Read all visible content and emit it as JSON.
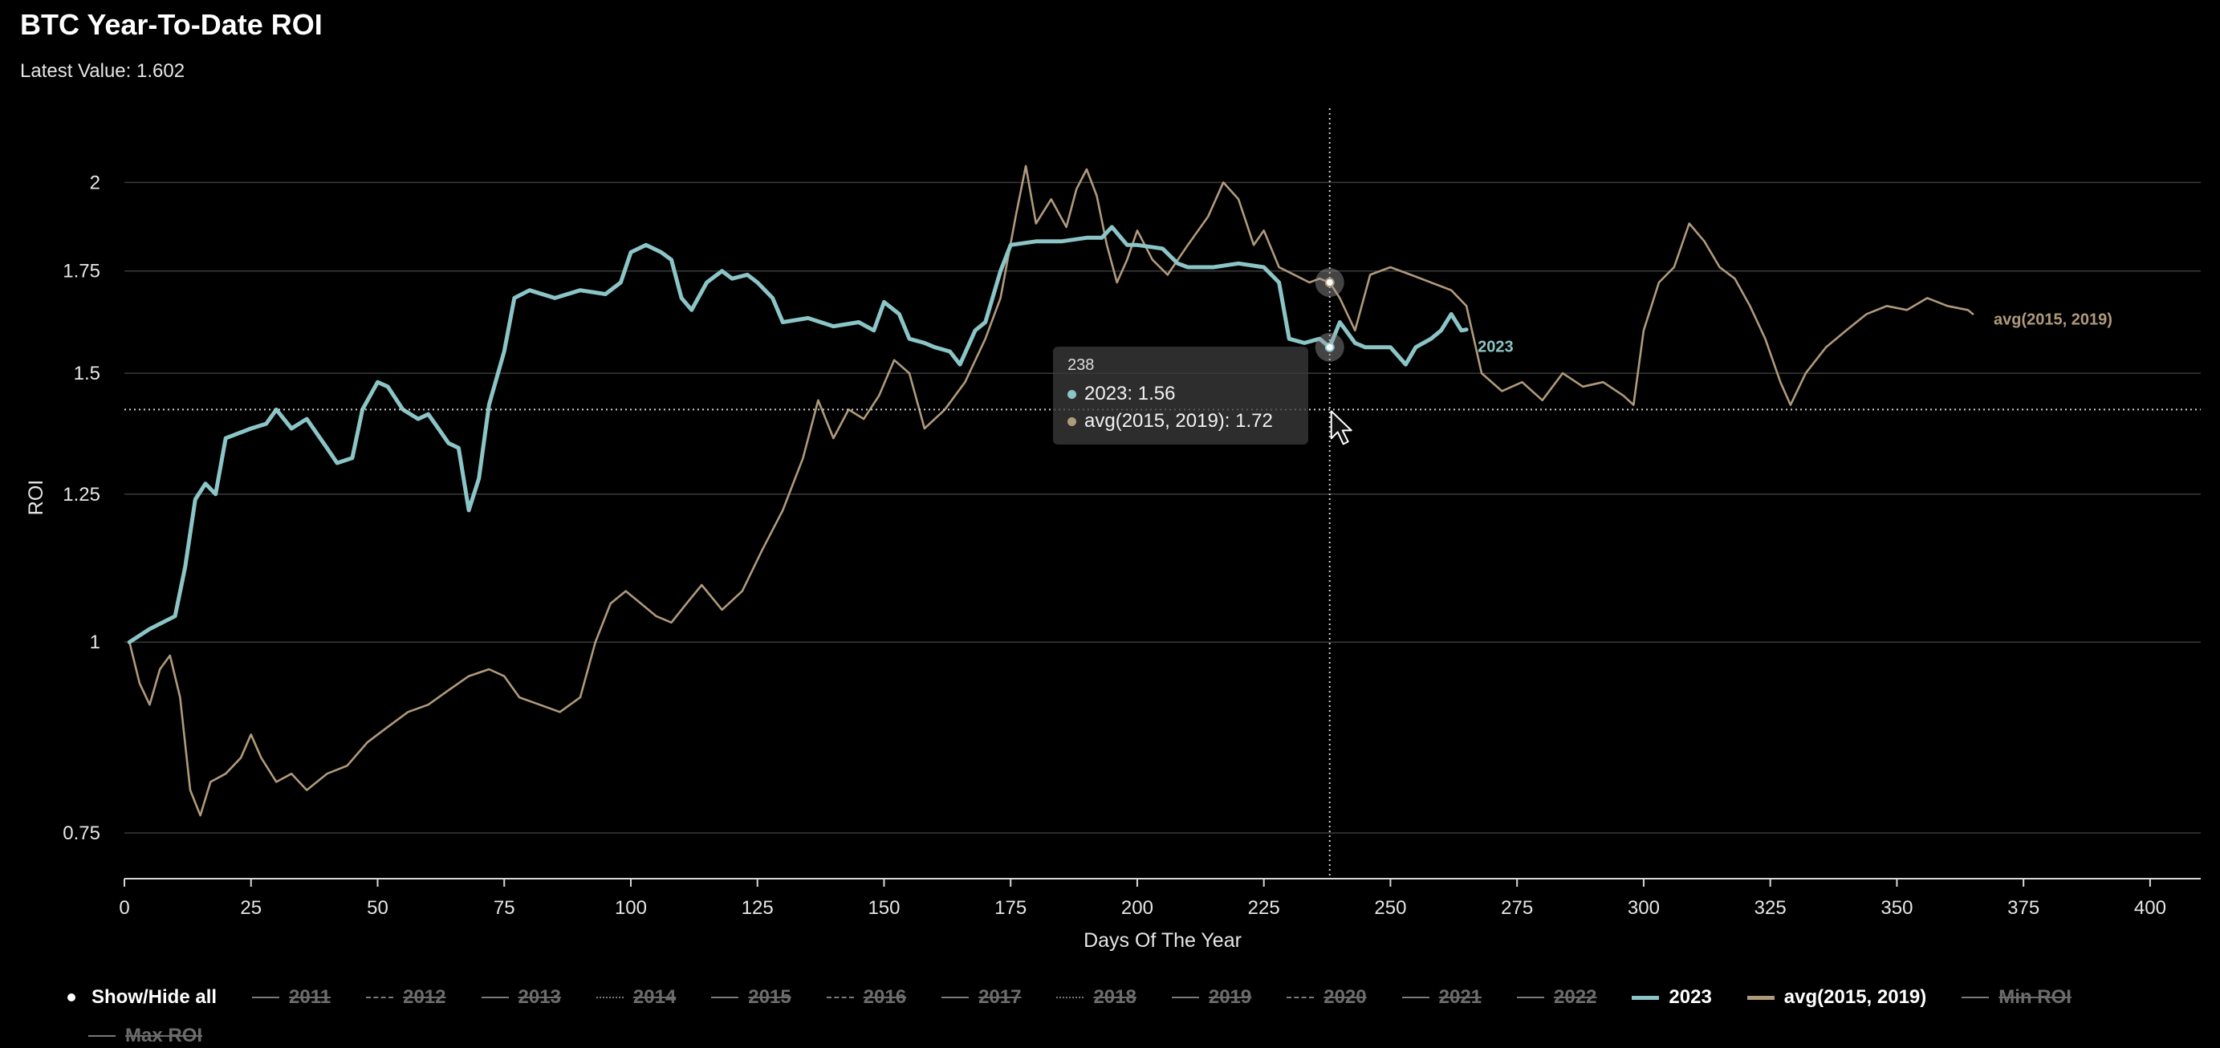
{
  "title": "BTC Year-To-Date ROI",
  "subtitle": "Latest Value: 1.602",
  "colors": {
    "background": "#000000",
    "series_2023": "#8cc5c7",
    "series_avg": "#b09a7c",
    "grid": "#3a3a3a",
    "crosshair": "#cfcfcf"
  },
  "legend": {
    "toggle_label": "Show/Hide all",
    "items": [
      {
        "label": "2011",
        "state": "hidden",
        "dash": "solid"
      },
      {
        "label": "2012",
        "state": "hidden",
        "dash": "dashed"
      },
      {
        "label": "2013",
        "state": "hidden",
        "dash": "solid"
      },
      {
        "label": "2014",
        "state": "hidden",
        "dash": "dotted"
      },
      {
        "label": "2015",
        "state": "hidden",
        "dash": "solid"
      },
      {
        "label": "2016",
        "state": "hidden",
        "dash": "dashed"
      },
      {
        "label": "2017",
        "state": "hidden",
        "dash": "solid"
      },
      {
        "label": "2018",
        "state": "hidden",
        "dash": "dotted"
      },
      {
        "label": "2019",
        "state": "hidden",
        "dash": "solid"
      },
      {
        "label": "2020",
        "state": "hidden",
        "dash": "dashed"
      },
      {
        "label": "2021",
        "state": "hidden",
        "dash": "solid"
      },
      {
        "label": "2022",
        "state": "hidden",
        "dash": "solid"
      },
      {
        "label": "2023",
        "state": "visible",
        "dash": "solid",
        "color": "#8cc5c7"
      },
      {
        "label": "avg(2015, 2019)",
        "state": "visible",
        "dash": "solid",
        "color": "#b09a7c"
      },
      {
        "label": "Min ROI",
        "state": "hidden",
        "dash": "solid"
      },
      {
        "label": "Max ROI",
        "state": "hidden",
        "dash": "solid"
      }
    ]
  },
  "tooltip": {
    "day": "238",
    "rows": [
      {
        "text": "2023: 1.56",
        "color": "#8cc5c7"
      },
      {
        "text": "avg(2015, 2019): 1.72",
        "color": "#b09a7c"
      }
    ]
  },
  "chart_data": {
    "type": "line",
    "title": "BTC Year-To-Date ROI",
    "subtitle": "Latest Value: 1.602",
    "xlabel": "Days Of The Year",
    "ylabel": "ROI",
    "xlim": [
      0,
      410
    ],
    "ylim": [
      0.7,
      2.25
    ],
    "y_scale": "log",
    "x_ticks": [
      0,
      25,
      50,
      75,
      100,
      125,
      150,
      175,
      200,
      225,
      250,
      275,
      300,
      325,
      350,
      375,
      400
    ],
    "y_ticks": [
      0.75,
      1,
      1.25,
      1.5,
      1.75,
      2
    ],
    "y_tick_labels": [
      "0.75",
      "1",
      "1.25",
      "1.5",
      "1.75",
      "2"
    ],
    "grid": true,
    "crosshair": {
      "x": 238,
      "y": 1.42
    },
    "series": [
      {
        "name": "2023",
        "end_label": "2023",
        "color": "#8cc5c7",
        "points": [
          [
            1,
            1.0
          ],
          [
            5,
            1.02
          ],
          [
            10,
            1.04
          ],
          [
            12,
            1.12
          ],
          [
            14,
            1.24
          ],
          [
            16,
            1.27
          ],
          [
            18,
            1.25
          ],
          [
            20,
            1.36
          ],
          [
            25,
            1.38
          ],
          [
            28,
            1.39
          ],
          [
            30,
            1.42
          ],
          [
            33,
            1.38
          ],
          [
            36,
            1.4
          ],
          [
            40,
            1.34
          ],
          [
            42,
            1.31
          ],
          [
            45,
            1.32
          ],
          [
            47,
            1.42
          ],
          [
            50,
            1.48
          ],
          [
            52,
            1.47
          ],
          [
            55,
            1.42
          ],
          [
            58,
            1.4
          ],
          [
            60,
            1.41
          ],
          [
            62,
            1.38
          ],
          [
            64,
            1.35
          ],
          [
            66,
            1.34
          ],
          [
            68,
            1.22
          ],
          [
            70,
            1.28
          ],
          [
            72,
            1.43
          ],
          [
            75,
            1.55
          ],
          [
            77,
            1.68
          ],
          [
            80,
            1.7
          ],
          [
            85,
            1.68
          ],
          [
            90,
            1.7
          ],
          [
            95,
            1.69
          ],
          [
            98,
            1.72
          ],
          [
            100,
            1.8
          ],
          [
            103,
            1.82
          ],
          [
            106,
            1.8
          ],
          [
            108,
            1.78
          ],
          [
            110,
            1.68
          ],
          [
            112,
            1.65
          ],
          [
            115,
            1.72
          ],
          [
            118,
            1.75
          ],
          [
            120,
            1.73
          ],
          [
            123,
            1.74
          ],
          [
            125,
            1.72
          ],
          [
            128,
            1.68
          ],
          [
            130,
            1.62
          ],
          [
            135,
            1.63
          ],
          [
            140,
            1.61
          ],
          [
            145,
            1.62
          ],
          [
            148,
            1.6
          ],
          [
            150,
            1.67
          ],
          [
            153,
            1.64
          ],
          [
            155,
            1.58
          ],
          [
            158,
            1.57
          ],
          [
            160,
            1.56
          ],
          [
            163,
            1.55
          ],
          [
            165,
            1.52
          ],
          [
            168,
            1.6
          ],
          [
            170,
            1.62
          ],
          [
            173,
            1.75
          ],
          [
            175,
            1.82
          ],
          [
            180,
            1.83
          ],
          [
            185,
            1.83
          ],
          [
            190,
            1.84
          ],
          [
            193,
            1.84
          ],
          [
            195,
            1.87
          ],
          [
            198,
            1.82
          ],
          [
            200,
            1.82
          ],
          [
            205,
            1.81
          ],
          [
            208,
            1.77
          ],
          [
            210,
            1.76
          ],
          [
            215,
            1.76
          ],
          [
            220,
            1.77
          ],
          [
            225,
            1.76
          ],
          [
            228,
            1.72
          ],
          [
            230,
            1.58
          ],
          [
            233,
            1.57
          ],
          [
            236,
            1.58
          ],
          [
            238,
            1.56
          ],
          [
            240,
            1.62
          ],
          [
            243,
            1.57
          ],
          [
            245,
            1.56
          ],
          [
            250,
            1.56
          ],
          [
            253,
            1.52
          ],
          [
            255,
            1.56
          ],
          [
            258,
            1.58
          ],
          [
            260,
            1.6
          ],
          [
            262,
            1.64
          ],
          [
            264,
            1.6
          ],
          [
            265,
            1.602
          ]
        ]
      },
      {
        "name": "avg(2015, 2019)",
        "end_label": "avg(2015, 2019)",
        "color": "#b09a7c",
        "points": [
          [
            1,
            1.0
          ],
          [
            3,
            0.94
          ],
          [
            5,
            0.91
          ],
          [
            7,
            0.96
          ],
          [
            9,
            0.98
          ],
          [
            11,
            0.92
          ],
          [
            13,
            0.8
          ],
          [
            15,
            0.77
          ],
          [
            17,
            0.81
          ],
          [
            20,
            0.82
          ],
          [
            23,
            0.84
          ],
          [
            25,
            0.87
          ],
          [
            27,
            0.84
          ],
          [
            30,
            0.81
          ],
          [
            33,
            0.82
          ],
          [
            36,
            0.8
          ],
          [
            40,
            0.82
          ],
          [
            44,
            0.83
          ],
          [
            48,
            0.86
          ],
          [
            52,
            0.88
          ],
          [
            56,
            0.9
          ],
          [
            60,
            0.91
          ],
          [
            64,
            0.93
          ],
          [
            68,
            0.95
          ],
          [
            72,
            0.96
          ],
          [
            75,
            0.95
          ],
          [
            78,
            0.92
          ],
          [
            82,
            0.91
          ],
          [
            86,
            0.9
          ],
          [
            90,
            0.92
          ],
          [
            93,
            1.0
          ],
          [
            96,
            1.06
          ],
          [
            99,
            1.08
          ],
          [
            102,
            1.06
          ],
          [
            105,
            1.04
          ],
          [
            108,
            1.03
          ],
          [
            111,
            1.06
          ],
          [
            114,
            1.09
          ],
          [
            118,
            1.05
          ],
          [
            122,
            1.08
          ],
          [
            126,
            1.15
          ],
          [
            130,
            1.22
          ],
          [
            134,
            1.32
          ],
          [
            137,
            1.44
          ],
          [
            140,
            1.36
          ],
          [
            143,
            1.42
          ],
          [
            146,
            1.4
          ],
          [
            149,
            1.45
          ],
          [
            152,
            1.53
          ],
          [
            155,
            1.5
          ],
          [
            158,
            1.38
          ],
          [
            162,
            1.42
          ],
          [
            166,
            1.48
          ],
          [
            170,
            1.58
          ],
          [
            173,
            1.68
          ],
          [
            176,
            1.9
          ],
          [
            178,
            2.05
          ],
          [
            180,
            1.88
          ],
          [
            183,
            1.95
          ],
          [
            186,
            1.87
          ],
          [
            188,
            1.98
          ],
          [
            190,
            2.04
          ],
          [
            192,
            1.96
          ],
          [
            194,
            1.82
          ],
          [
            196,
            1.72
          ],
          [
            198,
            1.78
          ],
          [
            200,
            1.86
          ],
          [
            203,
            1.78
          ],
          [
            206,
            1.74
          ],
          [
            210,
            1.82
          ],
          [
            214,
            1.9
          ],
          [
            217,
            2.0
          ],
          [
            220,
            1.95
          ],
          [
            223,
            1.82
          ],
          [
            225,
            1.86
          ],
          [
            228,
            1.76
          ],
          [
            231,
            1.74
          ],
          [
            234,
            1.72
          ],
          [
            236,
            1.73
          ],
          [
            238,
            1.72
          ],
          [
            240,
            1.68
          ],
          [
            243,
            1.6
          ],
          [
            246,
            1.74
          ],
          [
            250,
            1.76
          ],
          [
            254,
            1.74
          ],
          [
            258,
            1.72
          ],
          [
            262,
            1.7
          ],
          [
            265,
            1.66
          ],
          [
            268,
            1.5
          ],
          [
            272,
            1.46
          ],
          [
            276,
            1.48
          ],
          [
            280,
            1.44
          ],
          [
            284,
            1.5
          ],
          [
            288,
            1.47
          ],
          [
            292,
            1.48
          ],
          [
            296,
            1.45
          ],
          [
            298,
            1.43
          ],
          [
            300,
            1.6
          ],
          [
            303,
            1.72
          ],
          [
            306,
            1.76
          ],
          [
            309,
            1.88
          ],
          [
            312,
            1.83
          ],
          [
            315,
            1.76
          ],
          [
            318,
            1.73
          ],
          [
            321,
            1.66
          ],
          [
            324,
            1.58
          ],
          [
            327,
            1.48
          ],
          [
            329,
            1.43
          ],
          [
            332,
            1.5
          ],
          [
            336,
            1.56
          ],
          [
            340,
            1.6
          ],
          [
            344,
            1.64
          ],
          [
            348,
            1.66
          ],
          [
            352,
            1.65
          ],
          [
            356,
            1.68
          ],
          [
            360,
            1.66
          ],
          [
            364,
            1.65
          ],
          [
            365,
            1.64
          ]
        ]
      }
    ]
  }
}
